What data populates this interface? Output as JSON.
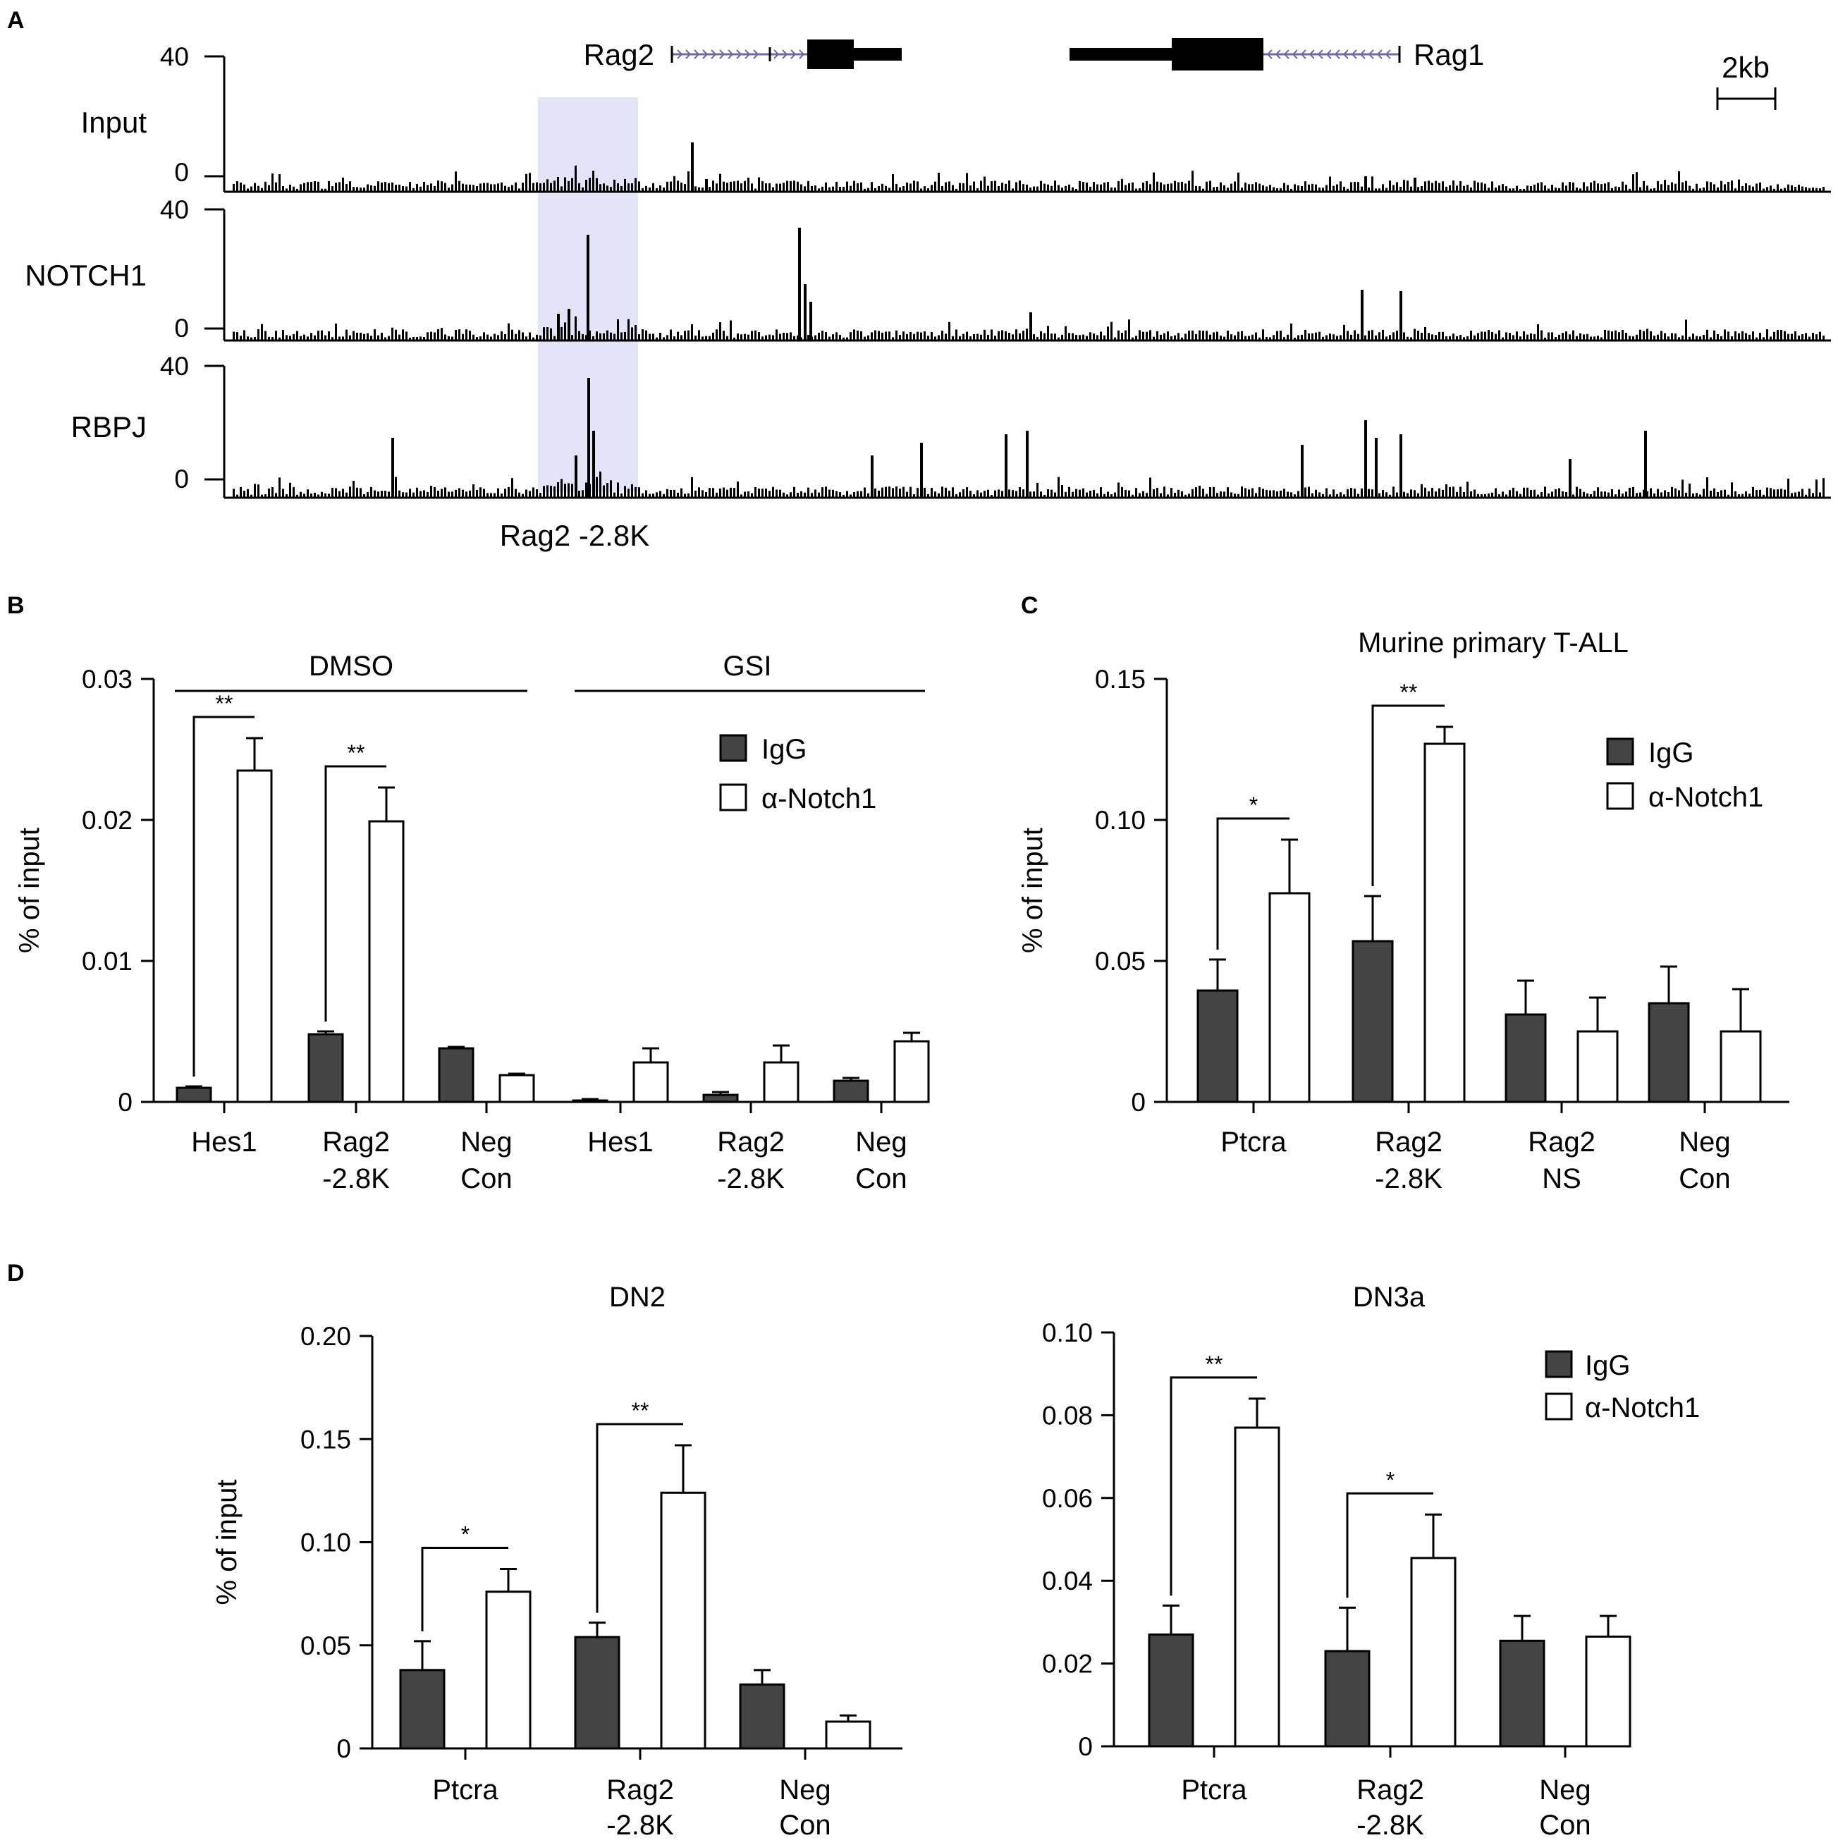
{
  "panels": {
    "A": {
      "letter": "A",
      "scale_bar": "2kb",
      "genes": {
        "left": "Rag2",
        "right": "Rag1"
      },
      "region_label": "Rag2 -2.8K",
      "colors": {
        "highlight": "#e3e4f8",
        "track": "#000000",
        "intron_arrow": "#6a6aa8"
      },
      "tracks": [
        {
          "name": "Input",
          "y_max_label": "40",
          "y_min_label": "0"
        },
        {
          "name": "NOTCH1",
          "y_max_label": "40",
          "y_min_label": "0"
        },
        {
          "name": "RBPJ",
          "y_max_label": "40",
          "y_min_label": "0"
        }
      ]
    },
    "B": {
      "letter": "B",
      "group_labels": [
        "DMSO",
        "GSI"
      ]
    },
    "C": {
      "letter": "C",
      "title": "Murine primary T-ALL"
    },
    "D": {
      "letter": "D"
    }
  },
  "legend": {
    "igg": "IgG",
    "notch": "α-Notch1"
  },
  "colors": {
    "igg_fill": "#444444",
    "notch_fill": "#ffffff",
    "stroke": "#000000"
  },
  "chart_data": [
    {
      "id": "B",
      "type": "bar",
      "title": "",
      "ylabel": "% of input",
      "ylim": [
        0,
        0.03
      ],
      "yticks": [
        0,
        0.01,
        0.02,
        0.03
      ],
      "ytick_labels": [
        "0",
        "0.01",
        "0.02",
        "0.03"
      ],
      "categories": [
        "Hes1",
        "Rag2\n-2.8K",
        "Neg\nCon",
        "Hes1",
        "Rag2\n-2.8K",
        "Neg\nCon"
      ],
      "groups": [
        {
          "label": "DMSO",
          "categories": [
            0,
            1,
            2
          ]
        },
        {
          "label": "GSI",
          "categories": [
            3,
            4,
            5
          ]
        }
      ],
      "series": [
        {
          "name": "IgG",
          "values": [
            0.001,
            0.0048,
            0.0038,
            0.0001,
            0.0005,
            0.0015
          ],
          "errors": [
            0.0001,
            0.0002,
            0.0001,
            0.0001,
            0.0002,
            0.0002
          ]
        },
        {
          "name": "α-Notch1",
          "values": [
            0.0235,
            0.0199,
            0.0019,
            0.0028,
            0.0028,
            0.0043
          ],
          "errors": [
            0.0023,
            0.0024,
            0.0001,
            0.001,
            0.0012,
            0.0006
          ]
        }
      ],
      "significance": [
        {
          "category": 0,
          "label": "**"
        },
        {
          "category": 1,
          "label": "**"
        }
      ]
    },
    {
      "id": "C",
      "type": "bar",
      "title": "Murine primary T-ALL",
      "ylabel": "% of input",
      "ylim": [
        0,
        0.15
      ],
      "yticks": [
        0,
        0.05,
        0.1,
        0.15
      ],
      "ytick_labels": [
        "0",
        "0.05",
        "0.10",
        "0.15"
      ],
      "categories": [
        "Ptcra",
        "Rag2\n-2.8K",
        "Rag2\nNS",
        "Neg\nCon"
      ],
      "series": [
        {
          "name": "IgG",
          "values": [
            0.0395,
            0.057,
            0.031,
            0.035
          ],
          "errors": [
            0.011,
            0.016,
            0.012,
            0.013
          ]
        },
        {
          "name": "α-Notch1",
          "values": [
            0.074,
            0.127,
            0.025,
            0.025
          ],
          "errors": [
            0.019,
            0.006,
            0.012,
            0.015
          ]
        }
      ],
      "significance": [
        {
          "category": 0,
          "label": "*"
        },
        {
          "category": 1,
          "label": "**"
        }
      ]
    },
    {
      "id": "D-DN2",
      "type": "bar",
      "title": "DN2",
      "ylabel": "% of input",
      "ylim": [
        0,
        0.2
      ],
      "yticks": [
        0,
        0.05,
        0.1,
        0.15,
        0.2
      ],
      "ytick_labels": [
        "0",
        "0.05",
        "0.10",
        "0.15",
        "0.20"
      ],
      "categories": [
        "Ptcra",
        "Rag2\n-2.8K",
        "Neg\nCon"
      ],
      "series": [
        {
          "name": "IgG",
          "values": [
            0.038,
            0.054,
            0.031
          ],
          "errors": [
            0.014,
            0.007,
            0.007
          ]
        },
        {
          "name": "α-Notch1",
          "values": [
            0.076,
            0.124,
            0.013
          ],
          "errors": [
            0.011,
            0.023,
            0.003
          ]
        }
      ],
      "significance": [
        {
          "category": 0,
          "label": "*"
        },
        {
          "category": 1,
          "label": "**"
        }
      ]
    },
    {
      "id": "D-DN3a",
      "type": "bar",
      "title": "DN3a",
      "ylabel": "",
      "ylim": [
        0,
        0.1
      ],
      "yticks": [
        0,
        0.02,
        0.04,
        0.06,
        0.08,
        0.1
      ],
      "ytick_labels": [
        "0",
        "0.02",
        "0.04",
        "0.06",
        "0.08",
        "0.10"
      ],
      "categories": [
        "Ptcra",
        "Rag2\n-2.8K",
        "Neg\nCon"
      ],
      "series": [
        {
          "name": "IgG",
          "values": [
            0.027,
            0.023,
            0.0255
          ],
          "errors": [
            0.007,
            0.0105,
            0.006
          ]
        },
        {
          "name": "α-Notch1",
          "values": [
            0.077,
            0.0455,
            0.0265
          ],
          "errors": [
            0.007,
            0.0105,
            0.005
          ]
        }
      ],
      "significance": [
        {
          "category": 0,
          "label": "**"
        },
        {
          "category": 1,
          "label": "*"
        }
      ]
    }
  ]
}
